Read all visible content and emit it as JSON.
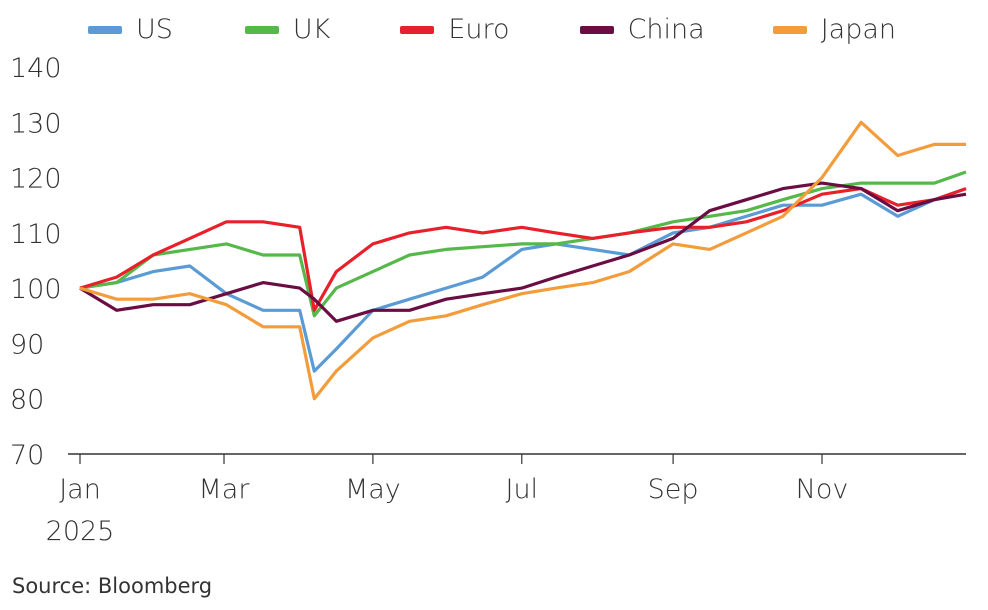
{
  "chart_data": {
    "type": "line",
    "title": "",
    "xlabel": "",
    "ylabel": "",
    "ylim": [
      70,
      140
    ],
    "yticks": [
      "70",
      "80",
      "90",
      "100",
      "110",
      "120",
      "130",
      "140"
    ],
    "xticks": [
      {
        "label": "Jan",
        "day": 0
      },
      {
        "label": "Mar",
        "day": 59
      },
      {
        "label": "May",
        "day": 120
      },
      {
        "label": "Jul",
        "day": 181
      },
      {
        "label": "Sep",
        "day": 243
      },
      {
        "label": "Nov",
        "day": 304
      }
    ],
    "xyear_label": "2025",
    "x_days": [
      0,
      15,
      30,
      45,
      60,
      75,
      90,
      96,
      105,
      120,
      135,
      150,
      165,
      181,
      195,
      210,
      225,
      243,
      258,
      273,
      288,
      304,
      320,
      335,
      350,
      363
    ],
    "legend_position": "top",
    "series": [
      {
        "name": "US",
        "color": "#5b9bd5",
        "values": [
          100,
          101,
          103,
          104,
          99,
          96,
          96,
          85,
          89,
          96,
          98,
          100,
          102,
          107,
          108,
          107,
          106,
          110,
          111,
          113,
          115,
          115,
          117,
          113,
          116,
          118
        ]
      },
      {
        "name": "UK",
        "color": "#56b84a",
        "values": [
          100,
          101,
          106,
          107,
          108,
          106,
          106,
          95,
          100,
          103,
          106,
          107,
          107.5,
          108,
          108,
          109,
          110,
          112,
          113,
          114,
          116,
          118,
          119,
          119,
          119,
          121
        ]
      },
      {
        "name": "Euro",
        "color": "#e8202a",
        "values": [
          100,
          102,
          106,
          109,
          112,
          112,
          111,
          96,
          103,
          108,
          110,
          111,
          110,
          111,
          110,
          109,
          110,
          111,
          111,
          112,
          114,
          117,
          118,
          115,
          116,
          118
        ]
      },
      {
        "name": "China",
        "color": "#6a0d42",
        "values": [
          100,
          96,
          97,
          97,
          99,
          101,
          100,
          98,
          94,
          96,
          96,
          98,
          99,
          100,
          102,
          104,
          106,
          109,
          114,
          116,
          118,
          119,
          118,
          114,
          116,
          117
        ]
      },
      {
        "name": "Japan",
        "color": "#f39c3c",
        "values": [
          100,
          98,
          98,
          99,
          97,
          93,
          93,
          80,
          85,
          91,
          94,
          95,
          97,
          99,
          100,
          101,
          103,
          108,
          107,
          110,
          113,
          120,
          130,
          124,
          126,
          126
        ]
      }
    ]
  },
  "source": "Source: Bloomberg"
}
